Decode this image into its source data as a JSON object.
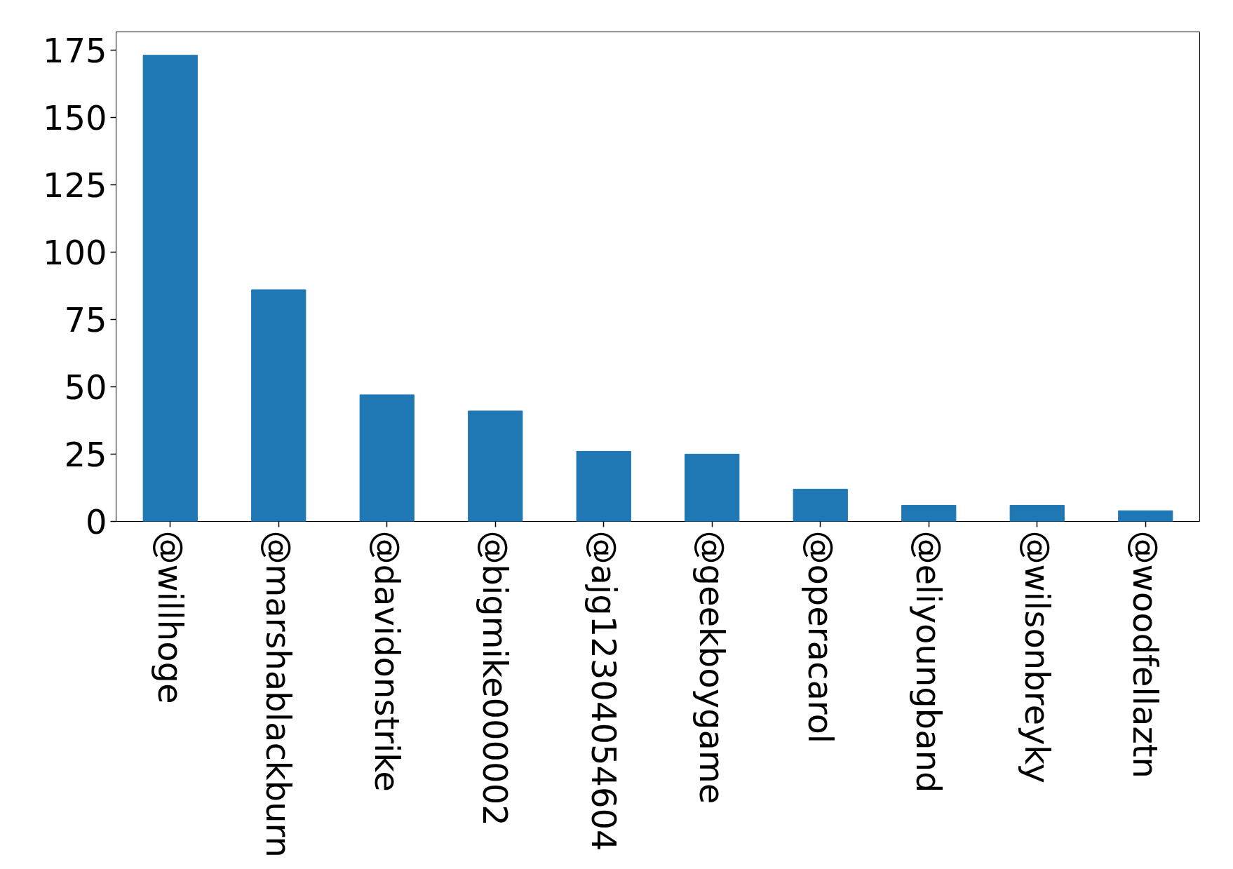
{
  "chart_data": {
    "type": "bar",
    "categories": [
      "@willhoge",
      "@marshablackburn",
      "@davidonstrike",
      "@bigmike000002",
      "@ajg12304054604",
      "@geekboygame",
      "@operacarol",
      "@eliyoungband",
      "@wilsonbreyky",
      "@woodfellaztn"
    ],
    "values": [
      173,
      86,
      47,
      41,
      26,
      25,
      12,
      6,
      6,
      4
    ],
    "color": "#1f77b4",
    "ylim": [
      0,
      181.65
    ],
    "yticks": [
      0,
      25,
      50,
      75,
      100,
      125,
      150,
      175
    ],
    "grid": false
  }
}
